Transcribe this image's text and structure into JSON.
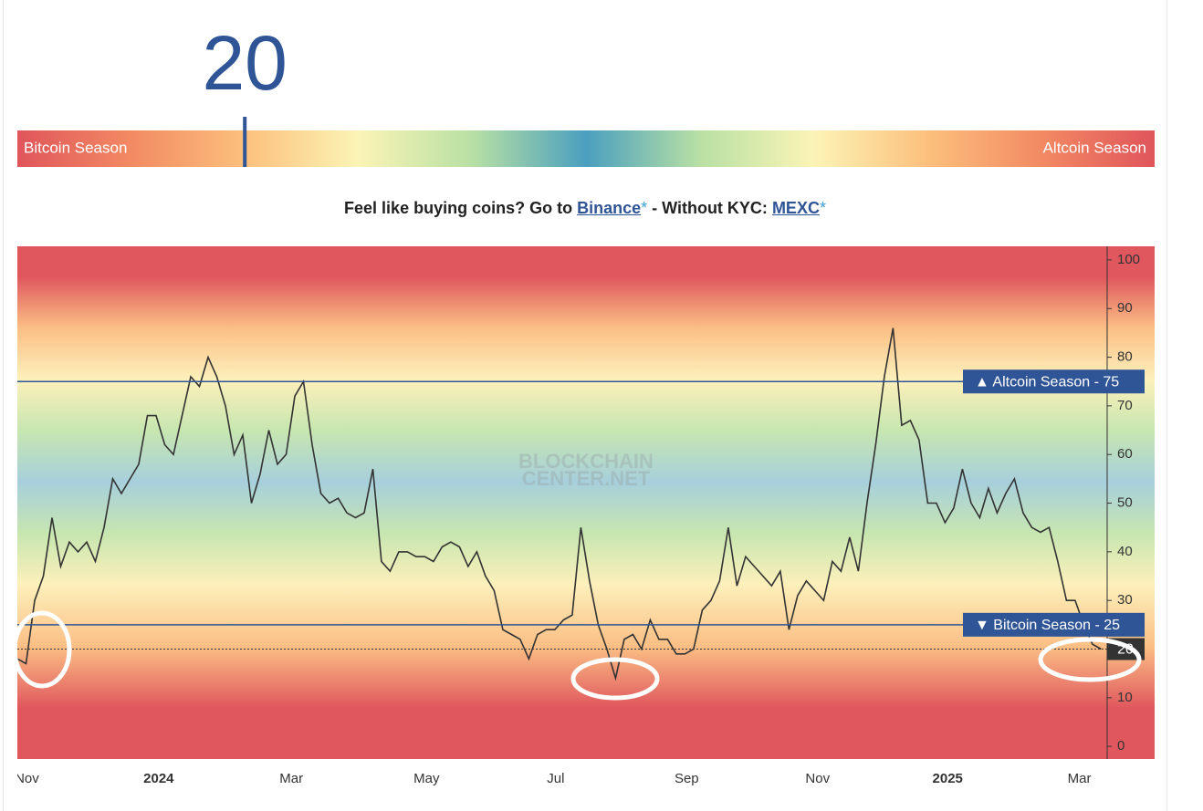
{
  "gauge": {
    "value": 20,
    "min_label": "Bitcoin Season",
    "max_label": "Altcoin Season",
    "range": [
      0,
      100
    ]
  },
  "promo": {
    "lead": "Feel like buying coins? Go to ",
    "link1": "Binance",
    "star1": "*",
    "middle": " - Without KYC: ",
    "link2": "MEXC",
    "star2": "*"
  },
  "chart_data": {
    "type": "line",
    "color": "#333333",
    "values": [
      18,
      17,
      30,
      35,
      47,
      37,
      42,
      40,
      42,
      38,
      45,
      55,
      52,
      55,
      58,
      68,
      68,
      62,
      60,
      68,
      76,
      74,
      80,
      76,
      70,
      60,
      64,
      50,
      56,
      65,
      58,
      60,
      72,
      75,
      62,
      52,
      50,
      51,
      48,
      47,
      48,
      57,
      38,
      36,
      40,
      40,
      39,
      39,
      38,
      41,
      42,
      41,
      37,
      40,
      35,
      32,
      24,
      23,
      22,
      18,
      23,
      24,
      24,
      26,
      27,
      45,
      34,
      25,
      20,
      14,
      22,
      23,
      20,
      26,
      22,
      22,
      19,
      19,
      20,
      28,
      30,
      34,
      45,
      33,
      39,
      37,
      35,
      33,
      36,
      24,
      31,
      34,
      32,
      30,
      38,
      36,
      43,
      36,
      50,
      62,
      76,
      86,
      66,
      67,
      63,
      50,
      50,
      46,
      49,
      57,
      50,
      47,
      53,
      48,
      52,
      55,
      48,
      45,
      44,
      45,
      38,
      30,
      30,
      25,
      21,
      20
    ],
    "xlim": [
      0,
      125.7
    ],
    "xticks": [
      {
        "value": 1.1,
        "label": "Nov"
      },
      {
        "value": 16.3,
        "label": "2024"
      },
      {
        "value": 31.6,
        "label": "Mar"
      },
      {
        "value": 47.2,
        "label": "May"
      },
      {
        "value": 62.1,
        "label": "Jul"
      },
      {
        "value": 77.2,
        "label": "Sep"
      },
      {
        "value": 92.3,
        "label": "Nov"
      },
      {
        "value": 107.3,
        "label": "2025"
      },
      {
        "value": 122.5,
        "label": "Mar"
      }
    ],
    "ylim": [
      -2.6,
      102.8
    ],
    "yticks": [
      0,
      10,
      20,
      30,
      40,
      50,
      60,
      70,
      80,
      90,
      100
    ],
    "reference_lines": [
      {
        "value": 75,
        "label": "▲ Altcoin Season - 75"
      },
      {
        "value": 25,
        "label": "▼ Bitcoin Season - 25"
      }
    ],
    "current_value": 20,
    "watermark": [
      "BLOCKCHAIN",
      "CENTER.NET"
    ]
  }
}
